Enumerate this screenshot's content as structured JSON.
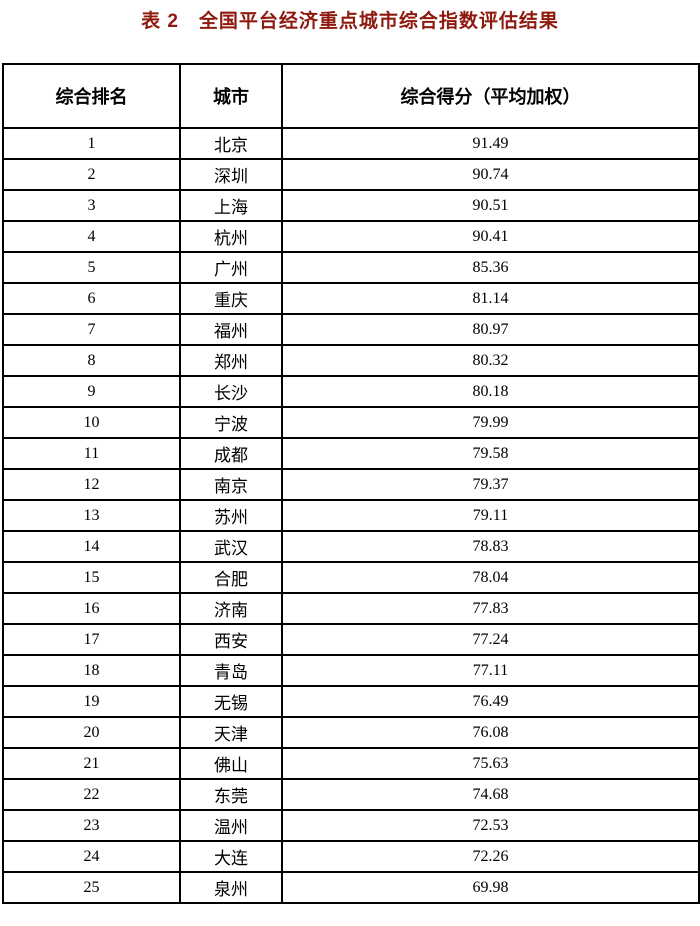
{
  "page": {
    "title": "表 2　全国平台经济重点城市综合指数评估结果"
  },
  "colors": {
    "title_text": "#8e1a0f",
    "border": "#000000",
    "background": "#ffffff",
    "body_text": "#000000"
  },
  "table": {
    "columns": [
      {
        "key": "rank",
        "label": "综合排名"
      },
      {
        "key": "city",
        "label": "城市"
      },
      {
        "key": "score",
        "label": "综合得分（平均加权）"
      }
    ],
    "rows": [
      {
        "rank": "1",
        "city": "北京",
        "score": "91.49"
      },
      {
        "rank": "2",
        "city": "深圳",
        "score": "90.74"
      },
      {
        "rank": "3",
        "city": "上海",
        "score": "90.51"
      },
      {
        "rank": "4",
        "city": "杭州",
        "score": "90.41"
      },
      {
        "rank": "5",
        "city": "广州",
        "score": "85.36"
      },
      {
        "rank": "6",
        "city": "重庆",
        "score": "81.14"
      },
      {
        "rank": "7",
        "city": "福州",
        "score": "80.97"
      },
      {
        "rank": "8",
        "city": "郑州",
        "score": "80.32"
      },
      {
        "rank": "9",
        "city": "长沙",
        "score": "80.18"
      },
      {
        "rank": "10",
        "city": "宁波",
        "score": "79.99"
      },
      {
        "rank": "11",
        "city": "成都",
        "score": "79.58"
      },
      {
        "rank": "12",
        "city": "南京",
        "score": "79.37"
      },
      {
        "rank": "13",
        "city": "苏州",
        "score": "79.11"
      },
      {
        "rank": "14",
        "city": "武汉",
        "score": "78.83"
      },
      {
        "rank": "15",
        "city": "合肥",
        "score": "78.04"
      },
      {
        "rank": "16",
        "city": "济南",
        "score": "77.83"
      },
      {
        "rank": "17",
        "city": "西安",
        "score": "77.24"
      },
      {
        "rank": "18",
        "city": "青岛",
        "score": "77.11"
      },
      {
        "rank": "19",
        "city": "无锡",
        "score": "76.49"
      },
      {
        "rank": "20",
        "city": "天津",
        "score": "76.08"
      },
      {
        "rank": "21",
        "city": "佛山",
        "score": "75.63"
      },
      {
        "rank": "22",
        "city": "东莞",
        "score": "74.68"
      },
      {
        "rank": "23",
        "city": "温州",
        "score": "72.53"
      },
      {
        "rank": "24",
        "city": "大连",
        "score": "72.26"
      },
      {
        "rank": "25",
        "city": "泉州",
        "score": "69.98"
      }
    ]
  }
}
